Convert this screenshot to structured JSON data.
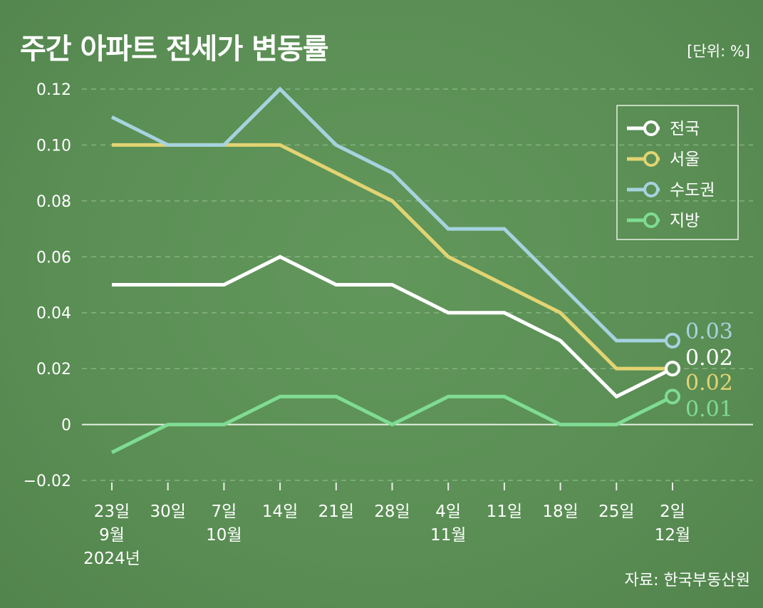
{
  "title": "주간 아파트 전세가 변동률",
  "unit_label": "[단위: %]",
  "source_label": "자료: 한국부동산원",
  "colors": {
    "background": "#5b8f55",
    "grid": "#8fb887",
    "zero_line": "#e8f0e4",
    "axis_text": "#ffffff"
  },
  "chart_data": {
    "type": "line",
    "title": "주간 아파트 전세가 변동률",
    "ylim": [
      -0.02,
      0.12
    ],
    "y_ticks": [
      "−0.02",
      "0",
      "0.02",
      "0.04",
      "0.06",
      "0.08",
      "0.10",
      "0.12"
    ],
    "y_tick_values": [
      -0.02,
      0,
      0.02,
      0.04,
      0.06,
      0.08,
      0.1,
      0.12
    ],
    "grid": true,
    "legend_position": "top-right",
    "categories": [
      [
        "23일",
        "9월",
        "2024년"
      ],
      [
        "30일"
      ],
      [
        "7일",
        "10월"
      ],
      [
        "14일"
      ],
      [
        "21일"
      ],
      [
        "28일"
      ],
      [
        "4일",
        "11월"
      ],
      [
        "11일"
      ],
      [
        "18일"
      ],
      [
        "25일"
      ],
      [
        "2일",
        "12월"
      ]
    ],
    "series": [
      {
        "name": "전국",
        "color": "#ffffff",
        "values": [
          0.05,
          0.05,
          0.05,
          0.06,
          0.05,
          0.05,
          0.04,
          0.04,
          0.03,
          0.01,
          0.02
        ],
        "end_label": "0.02"
      },
      {
        "name": "서울",
        "color": "#e2d472",
        "values": [
          0.1,
          0.1,
          0.1,
          0.1,
          0.09,
          0.08,
          0.06,
          0.05,
          0.04,
          0.02,
          0.02
        ],
        "end_label": "0.02"
      },
      {
        "name": "수도권",
        "color": "#a6d3df",
        "values": [
          0.11,
          0.1,
          0.1,
          0.12,
          0.1,
          0.09,
          0.07,
          0.07,
          0.05,
          0.03,
          0.03
        ],
        "end_label": "0.03"
      },
      {
        "name": "지방",
        "color": "#7fdc92",
        "values": [
          -0.01,
          0.0,
          0.0,
          0.01,
          0.01,
          0.0,
          0.01,
          0.01,
          0.0,
          0.0,
          0.01
        ],
        "end_label": "0.01"
      }
    ]
  }
}
